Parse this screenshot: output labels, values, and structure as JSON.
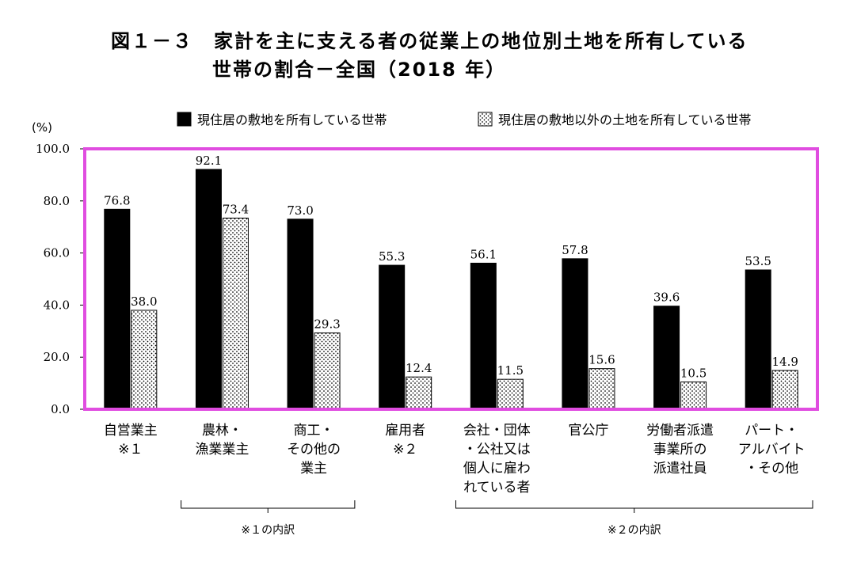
{
  "chart_data": {
    "type": "bar",
    "title": "図１－３　家計を主に支える者の従業上の地位別土地を所有している",
    "subtitle": "世帯の割合－全国（2018 年）",
    "ylabel": "(%)",
    "ylim": [
      0,
      100
    ],
    "yticks": [
      "0.0",
      "20.0",
      "40.0",
      "60.0",
      "80.0",
      "100.0"
    ],
    "categories": [
      [
        "自営業主",
        "※１"
      ],
      [
        "農林・",
        "漁業業主"
      ],
      [
        "商工・",
        "その他の",
        "業主"
      ],
      [
        "雇用者",
        "※２"
      ],
      [
        "会社・団体",
        "・公社又は",
        "個人に雇わ",
        "れている者"
      ],
      [
        "官公庁"
      ],
      [
        "労働者派遣",
        "事業所の",
        "派遣社員"
      ],
      [
        "パート・",
        "アルバイト",
        "・その他"
      ]
    ],
    "series": [
      {
        "name": "現住居の敷地を所有している世帯",
        "values": [
          76.8,
          92.1,
          73.0,
          55.3,
          56.1,
          57.8,
          39.6,
          53.5
        ],
        "labels": [
          "76.8",
          "92.1",
          "73.0",
          "55.3",
          "56.1",
          "57.8",
          "39.6",
          "53.5"
        ],
        "color": "#000000"
      },
      {
        "name": "現住居の敷地以外の土地を所有している世帯",
        "values": [
          38.0,
          73.4,
          29.3,
          12.4,
          11.5,
          15.6,
          10.5,
          14.9
        ],
        "labels": [
          "38.0",
          "73.4",
          "29.3",
          "12.4",
          "11.5",
          "15.6",
          "10.5",
          "14.9"
        ],
        "color": "#ffffff",
        "pattern": "dotted"
      }
    ],
    "brackets": [
      {
        "label": "※１の内訳",
        "from_category": 1,
        "to_category": 2
      },
      {
        "label": "※２の内訳",
        "from_category": 4,
        "to_category": 7
      }
    ],
    "legend": "top-right",
    "grid": false,
    "frame_color": "#e04de0"
  }
}
